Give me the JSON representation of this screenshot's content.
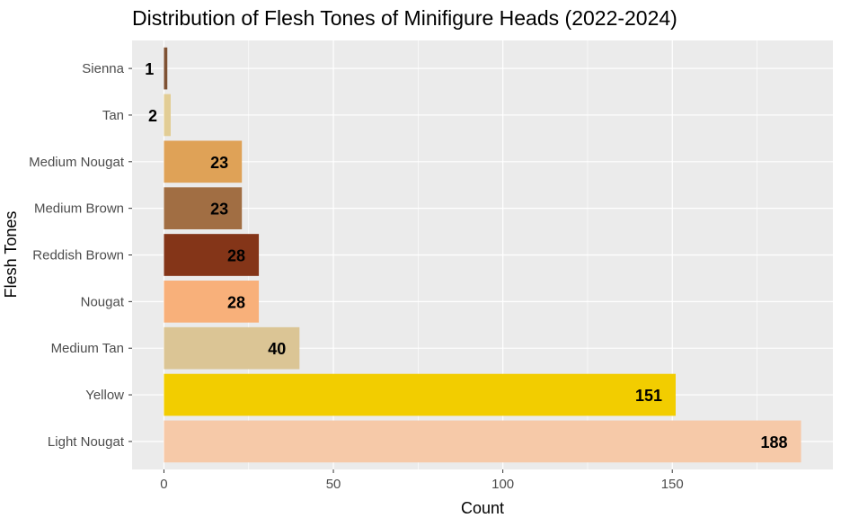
{
  "chart_data": {
    "type": "bar",
    "orientation": "horizontal",
    "title": "Distribution of Flesh Tones of Minifigure Heads (2022-2024)",
    "xlabel": "Count",
    "ylabel": "Flesh Tones",
    "categories": [
      "Light Nougat",
      "Yellow",
      "Medium Tan",
      "Nougat",
      "Reddish Brown",
      "Medium Brown",
      "Medium Nougat",
      "Tan",
      "Sienna"
    ],
    "values": [
      188,
      151,
      40,
      28,
      28,
      23,
      23,
      2,
      1
    ],
    "colors": [
      "#F6C9A8",
      "#F2CD00",
      "#DBC595",
      "#F8B07A",
      "#843518",
      "#A16E43",
      "#DFA257",
      "#E2CD95",
      "#7F5234"
    ],
    "xlim": [
      -9.4,
      197.4
    ],
    "xticks": [
      0,
      50,
      100,
      150
    ],
    "grid": true,
    "panel_background": "#EBEBEB",
    "grid_color": "#FFFFFF"
  }
}
